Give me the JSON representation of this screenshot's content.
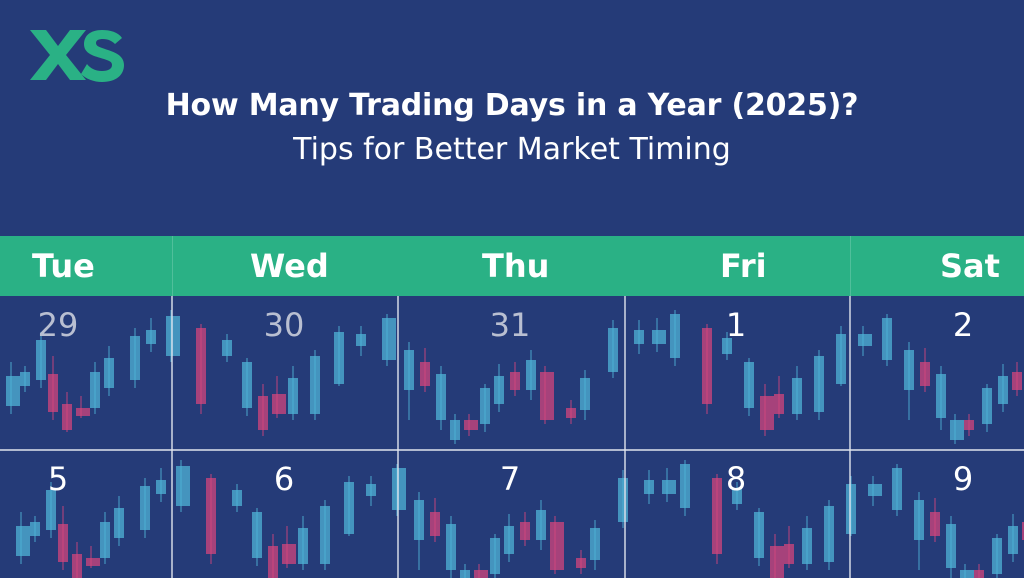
{
  "brand": {
    "logo_text": "XS",
    "logo_color": "#2ab185"
  },
  "title": "How Many Trading Days in a Year (2025)?",
  "subtitle": "Tips for Better Market Timing",
  "colors": {
    "background": "#253b78",
    "header": "#2ab185",
    "candle_up": "#4fb3d6",
    "candle_down": "#d2457c",
    "grid_line": "#e0e4ee",
    "date_muted": "#b9bfd1",
    "date_active": "#ffffff"
  },
  "calendar": {
    "days": [
      "Tue",
      "Wed",
      "Thu",
      "Fri",
      "Sat"
    ],
    "weeks": [
      {
        "dates": [
          "29",
          "30",
          "31",
          "1",
          "2"
        ]
      },
      {
        "dates": [
          "5",
          "6",
          "7",
          "8",
          "9"
        ]
      }
    ]
  }
}
